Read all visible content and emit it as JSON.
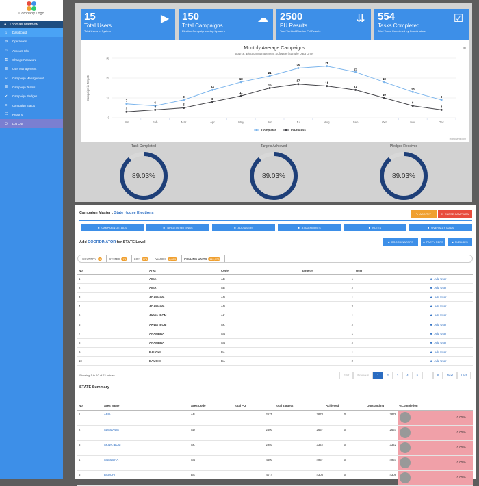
{
  "sidebar": {
    "logo_text": "Company Logo",
    "user_name": "Thomas Matthew",
    "items": [
      {
        "label": "Dashboard",
        "icon": "home-icon",
        "glyph": "⌂"
      },
      {
        "label": "Operations",
        "icon": "gear-icon",
        "glyph": "⚙"
      },
      {
        "label": "Account Info",
        "icon": "user-icon",
        "glyph": "☺"
      },
      {
        "label": "Change Password",
        "icon": "key-icon",
        "glyph": "⚿"
      },
      {
        "label": "User Management",
        "icon": "users-icon",
        "glyph": "☰"
      },
      {
        "label": "Campaign Management",
        "icon": "bullhorn-icon",
        "glyph": "♫"
      },
      {
        "label": "Campaign Teams",
        "icon": "team-icon",
        "glyph": "☰"
      },
      {
        "label": "Campaign Pledges",
        "icon": "check-icon",
        "glyph": "✔"
      },
      {
        "label": "Campaign Status",
        "icon": "chart-icon",
        "glyph": "≡"
      },
      {
        "label": "Reports",
        "icon": "report-icon",
        "glyph": "☷"
      },
      {
        "label": "Log Out",
        "icon": "power-icon",
        "glyph": "⏻"
      }
    ]
  },
  "stats": [
    {
      "num": "15",
      "title": "Total Users",
      "sub": "Total Users In System",
      "icon": "play-icon",
      "glyph": "▶"
    },
    {
      "num": "150",
      "title": "Total Campaigns",
      "sub": "Election Campaigns setup by users",
      "icon": "chat-icon",
      "glyph": "☁"
    },
    {
      "num": "2500",
      "title": "PU Results",
      "sub": "Total Verified Election PU Results",
      "icon": "sort-icon",
      "glyph": "⇊"
    },
    {
      "num": "554",
      "title": "Tasks Completed",
      "sub": "Total Tasks Completed by Coordinators",
      "icon": "checkbox-icon",
      "glyph": "☑"
    }
  ],
  "chart_data": {
    "type": "line",
    "title": "Monthly Average Campaigns",
    "subtitle": "Source: Election Management Software (Sample Data Only)",
    "ylabel": "Campaign in Targets",
    "categories": [
      "Jan",
      "Feb",
      "Mar",
      "Apr",
      "May",
      "Jun",
      "Jul",
      "Aug",
      "Sep",
      "Oct",
      "Nov",
      "Dec"
    ],
    "yticks": [
      0,
      10,
      20,
      30
    ],
    "ylim": [
      0,
      30
    ],
    "series": [
      {
        "name": "Completed",
        "color": "#7cb5ec",
        "values": [
          7,
          6,
          9,
          14,
          18,
          21,
          25,
          26,
          23,
          18,
          13,
          9
        ]
      },
      {
        "name": "In Process",
        "color": "#434348",
        "values": [
          3,
          4,
          5,
          8,
          11,
          15,
          17,
          16,
          14,
          10,
          6,
          4
        ]
      }
    ],
    "credit": "Highcharts.com",
    "legend": "bottom-center"
  },
  "gauges": [
    {
      "label": "Task Completed",
      "value": "89.03%",
      "fraction": 0.8903
    },
    {
      "label": "Targets Achieved",
      "value": "89.03%",
      "fraction": 0.8903
    },
    {
      "label": "Pledges Received",
      "value": "89.03%",
      "fraction": 0.8903
    }
  ],
  "campaign": {
    "prefix": "Campaign Master : ",
    "name": "State House Elections",
    "edit_label": "ADDIT IT",
    "close_label": "CLOSE CAMPAIGN",
    "tabs": [
      "CAMPAIGN DETAILS",
      "TARGETS SETTINGS",
      "ADD USERS",
      "ATTACHMENTS",
      "NOTES",
      "OVERALL STATUS"
    ],
    "add_prefix": "Add ",
    "add_role": "COORDINATOR",
    "add_suffix": " for STATE Level",
    "side_buttons": [
      "COORDINATORS",
      "PARTY REPS",
      "PLEDGES"
    ]
  },
  "crumbs": [
    {
      "label": "COUNTRY",
      "count": "1"
    },
    {
      "label": "STATES",
      "count": "74"
    },
    {
      "label": "LGA",
      "count": "774"
    },
    {
      "label": "WARDS",
      "count": "8,809"
    },
    {
      "label": "POLLING UNITS",
      "count": "119,973"
    }
  ],
  "table": {
    "headers": [
      "No.",
      "Area",
      "Code",
      "Target #",
      "User"
    ],
    "add_label": "Add User",
    "rows": [
      [
        "1",
        "ABIA",
        "AB",
        "1"
      ],
      [
        "2",
        "ABIA",
        "AB",
        "2"
      ],
      [
        "3",
        "ADAMAWA",
        "AD",
        "1"
      ],
      [
        "4",
        "ADAMAWA",
        "AD",
        "2"
      ],
      [
        "5",
        "AKWA IBOM",
        "AK",
        "1"
      ],
      [
        "6",
        "AKWA IBOM",
        "AK",
        "2"
      ],
      [
        "7",
        "ANAMBRA",
        "AN",
        "1"
      ],
      [
        "8",
        "ANAMBRA",
        "AN",
        "2"
      ],
      [
        "9",
        "BAUCHI",
        "BA",
        "1"
      ],
      [
        "10",
        "BAUCHI",
        "BA",
        "2"
      ]
    ],
    "showing": "Showing 1 to 10 of 74 entries",
    "pagination": [
      "First",
      "Previous",
      "1",
      "2",
      "3",
      "4",
      "5",
      "...",
      "8",
      "Next",
      "Last"
    ]
  },
  "summary": {
    "title": "STATE Summary",
    "headers": [
      "No.",
      "Area Name",
      "Area Code",
      "Total PU",
      "Total Targets",
      "Achieved",
      "Outstanding",
      "%Completion"
    ],
    "rows": [
      [
        "1",
        "ABIA",
        "AB",
        "2675",
        "2878",
        "0",
        "2878",
        "0.00 %"
      ],
      [
        "2",
        "ADAMAWA",
        "AD",
        "2600",
        "2657",
        "0",
        "2657",
        "0.00 %"
      ],
      [
        "3",
        "AKWA IBOM",
        "AK",
        "2980",
        "3342",
        "0",
        "3342",
        "0.00 %"
      ],
      [
        "4",
        "ANAMBRA",
        "AN",
        "4600",
        "4957",
        "0",
        "4957",
        "0.00 %"
      ],
      [
        "5",
        "BAUCHI",
        "BA",
        "4074",
        "4308",
        "0",
        "4308",
        "0.00 %"
      ]
    ]
  }
}
